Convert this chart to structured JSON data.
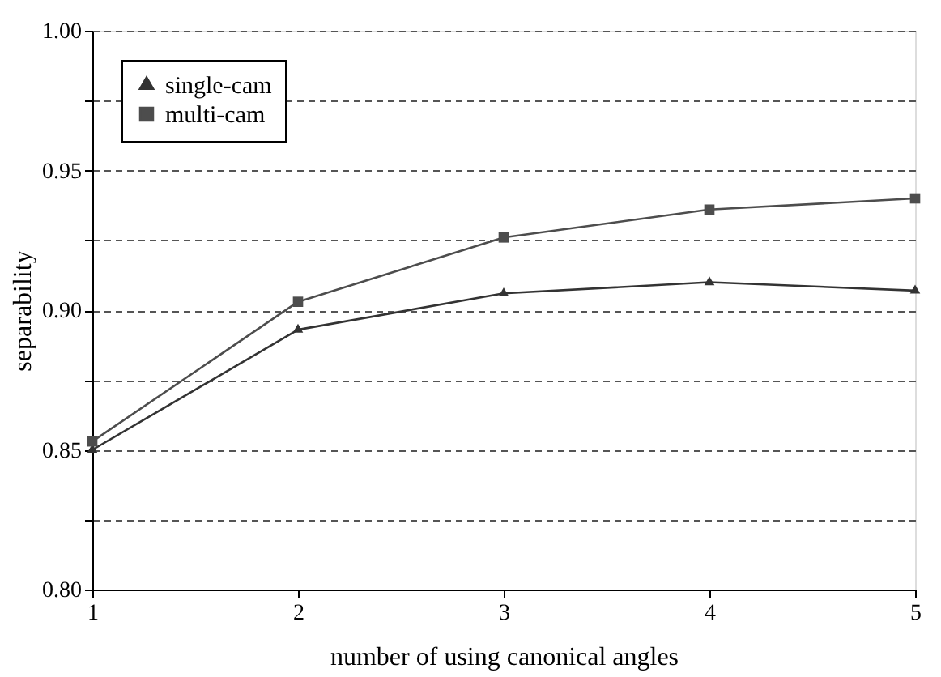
{
  "chart_data": {
    "type": "line",
    "xlabel": "number of using canonical angles",
    "ylabel": "separability",
    "x": [
      1,
      2,
      3,
      4,
      5
    ],
    "series": [
      {
        "name": "single-cam",
        "color": "#333333",
        "marker": "triangle",
        "values": [
          0.85,
          0.893,
          0.906,
          0.91,
          0.907
        ]
      },
      {
        "name": "multi-cam",
        "color": "#4d4d4d",
        "marker": "square",
        "values": [
          0.853,
          0.903,
          0.926,
          0.936,
          0.94
        ]
      }
    ],
    "xlim": [
      1,
      5
    ],
    "xticks": [
      1,
      2,
      3,
      4,
      5
    ],
    "ylim": [
      0.8,
      1.0
    ],
    "yticks": [
      {
        "value": 0.8,
        "label": "0.80"
      },
      {
        "value": 0.825,
        "label": null
      },
      {
        "value": 0.85,
        "label": "0.85"
      },
      {
        "value": 0.875,
        "label": null
      },
      {
        "value": 0.9,
        "label": "0.90"
      },
      {
        "value": 0.925,
        "label": null
      },
      {
        "value": 0.95,
        "label": "0.95"
      },
      {
        "value": 0.975,
        "label": null
      },
      {
        "value": 1.0,
        "label": "1.00"
      }
    ],
    "grid": "y",
    "legend": "top left",
    "line_style": "solid"
  }
}
